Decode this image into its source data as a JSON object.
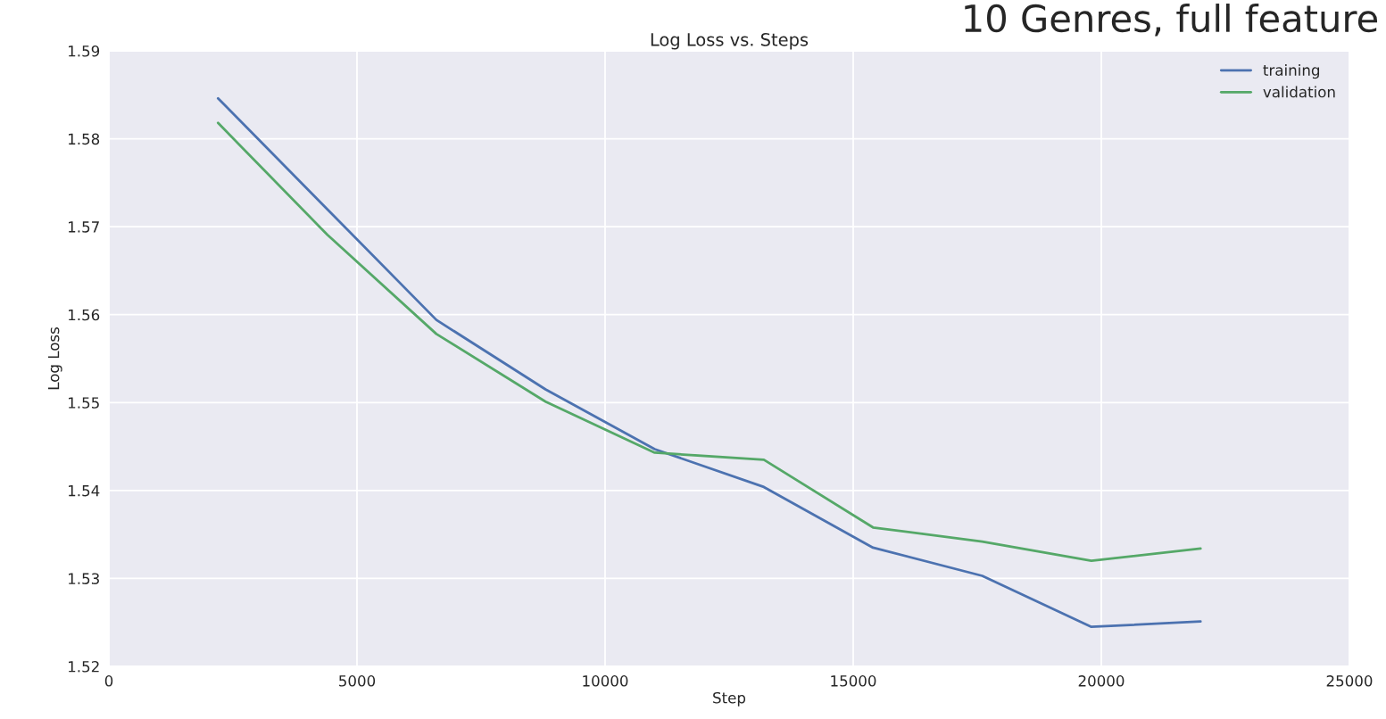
{
  "chart_data": {
    "type": "line",
    "title": "Log Loss vs. Steps",
    "xlabel": "Step",
    "ylabel": "Log Loss",
    "annotations": [
      "10 Genres, full feature"
    ],
    "x": [
      2200,
      4400,
      6600,
      8800,
      11000,
      13200,
      15400,
      17600,
      19800,
      22000
    ],
    "series": [
      {
        "name": "training",
        "color": "#4c72b0",
        "values": [
          1.5846,
          1.572,
          1.5594,
          1.5515,
          1.5447,
          1.5404,
          1.5335,
          1.5303,
          1.5245,
          1.5251
        ]
      },
      {
        "name": "validation",
        "color": "#55a868",
        "values": [
          1.5818,
          1.5691,
          1.5578,
          1.5501,
          1.5443,
          1.5435,
          1.5358,
          1.5342,
          1.532,
          1.5334
        ]
      }
    ],
    "xlim": [
      0,
      25000
    ],
    "xticks": [
      0,
      5000,
      10000,
      15000,
      20000,
      25000
    ],
    "ylim": [
      1.52,
      1.59
    ],
    "yticks": [
      1.52,
      1.53,
      1.54,
      1.55,
      1.56,
      1.57,
      1.58,
      1.59
    ],
    "grid": true,
    "legend": "top right",
    "marker": "none",
    "line_style": "solid"
  }
}
